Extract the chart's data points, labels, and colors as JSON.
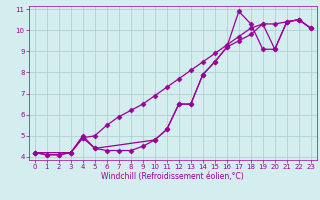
{
  "line1_x": [
    0,
    1,
    2,
    3,
    4,
    5,
    6,
    7,
    8,
    9,
    10,
    11,
    12,
    13,
    14,
    15,
    16,
    17,
    18,
    19,
    20,
    21,
    22,
    23
  ],
  "line1_y": [
    4.2,
    4.1,
    4.1,
    4.2,
    4.9,
    4.4,
    4.3,
    4.3,
    4.3,
    4.5,
    4.8,
    5.3,
    6.5,
    6.5,
    7.9,
    8.5,
    9.2,
    9.5,
    9.8,
    10.3,
    9.1,
    10.4,
    10.5,
    10.1
  ],
  "line2_x": [
    0,
    1,
    2,
    3,
    4,
    5,
    6,
    7,
    8,
    9,
    10,
    11,
    12,
    13,
    14,
    15,
    16,
    17,
    18,
    19,
    20,
    21,
    22,
    23
  ],
  "line2_y": [
    4.2,
    4.1,
    4.1,
    4.2,
    4.9,
    5.0,
    5.5,
    5.9,
    6.2,
    6.5,
    6.9,
    7.3,
    7.7,
    8.1,
    8.5,
    8.9,
    9.3,
    9.7,
    10.1,
    10.3,
    10.3,
    10.4,
    10.5,
    10.1
  ],
  "line3_x": [
    0,
    3,
    4,
    5,
    10,
    11,
    12,
    13,
    14,
    15,
    16,
    17,
    18,
    19,
    20,
    21,
    22,
    23
  ],
  "line3_y": [
    4.2,
    4.2,
    5.0,
    4.4,
    4.8,
    5.3,
    6.5,
    6.5,
    7.9,
    8.5,
    9.2,
    10.9,
    10.3,
    9.1,
    9.1,
    10.4,
    10.5,
    10.1
  ],
  "color": "#990099",
  "bg_color": "#d4eef0",
  "grid_color": "#aacccc",
  "xlabel": "Windchill (Refroidissement éolien,°C)",
  "xlim": [
    -0.5,
    23.5
  ],
  "ylim": [
    3.85,
    11.15
  ],
  "xticks": [
    0,
    1,
    2,
    3,
    4,
    5,
    6,
    7,
    8,
    9,
    10,
    11,
    12,
    13,
    14,
    15,
    16,
    17,
    18,
    19,
    20,
    21,
    22,
    23
  ],
  "yticks": [
    4,
    5,
    6,
    7,
    8,
    9,
    10,
    11
  ],
  "marker": "D",
  "markersize": 2.5,
  "linewidth": 0.9
}
